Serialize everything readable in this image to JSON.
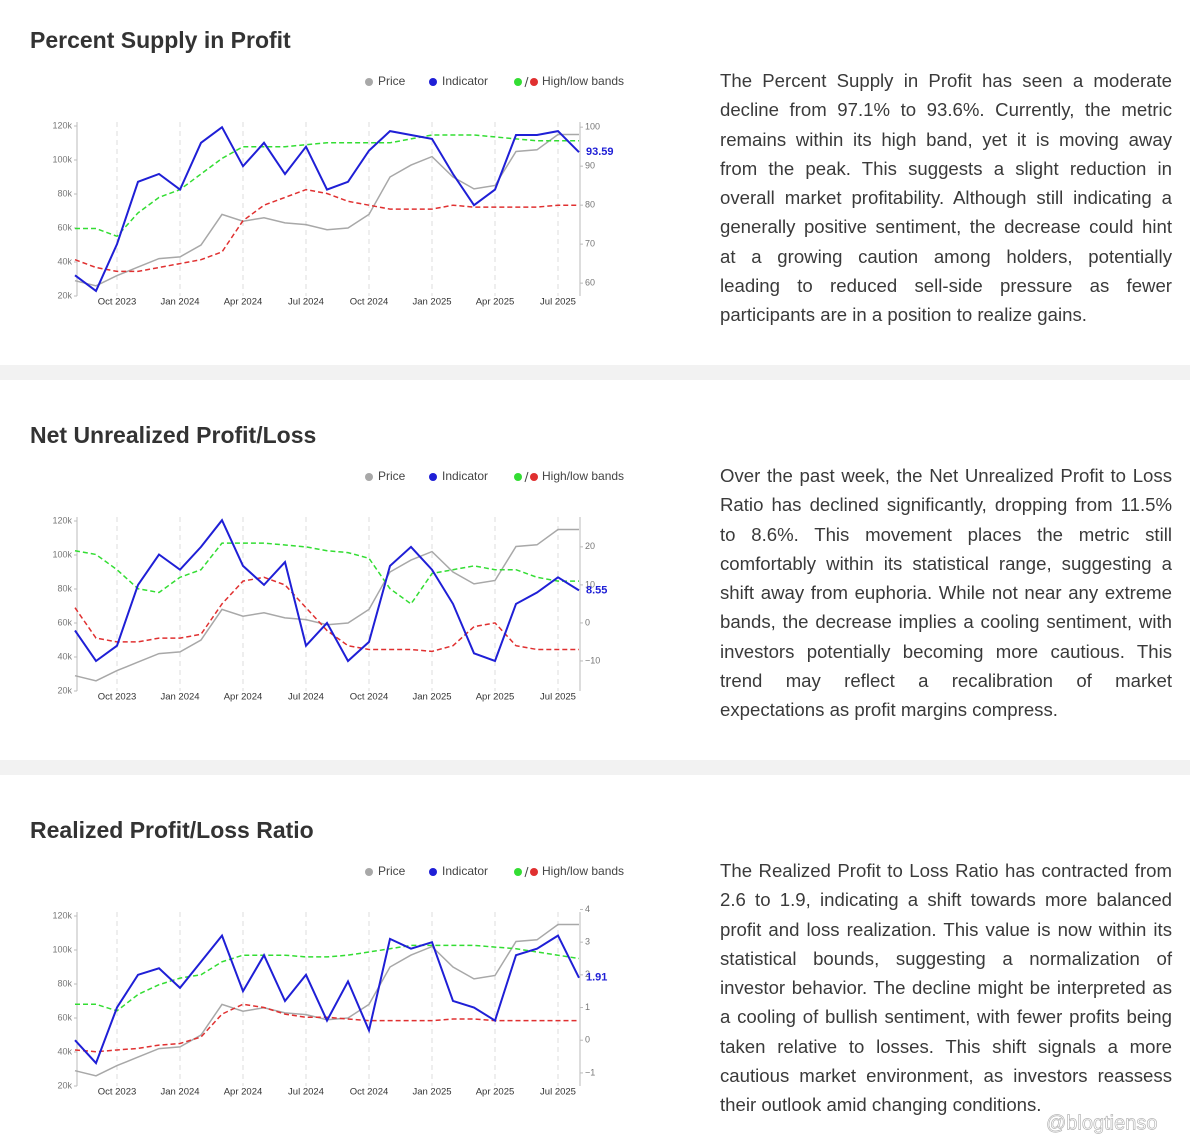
{
  "chart_data": [
    {
      "type": "line",
      "title": "Percent Supply in Profit",
      "text": "The Percent Supply in Profit has seen a moderate decline from 97.1% to 93.6%. Currently, the metric remains within its high band, yet it is moving away from the peak. This suggests a slight reduction in overall market profitability. Although still indicating a generally positive sentiment, the decrease could hint at a growing caution among holders, potentially leading to reduced sell-side pressure as fewer participants are in a position to realize gains.",
      "categories": [
        null,
        null,
        "Oct 2023",
        null,
        null,
        "Jan 2024",
        null,
        null,
        "Apr 2024",
        null,
        null,
        "Jul 2024",
        null,
        null,
        "Oct 2024",
        null,
        null,
        "Jan 2025",
        null,
        null,
        "Apr 2025",
        null,
        null,
        "Jul 2025",
        null
      ],
      "ylim": [
        20000,
        120000
      ],
      "yticks": [
        {
          "value": 20000,
          "label": "20k"
        },
        {
          "value": 40000,
          "label": "40k"
        },
        {
          "value": 60000,
          "label": "60k"
        },
        {
          "value": 80000,
          "label": "80k"
        },
        {
          "value": 100000,
          "label": "100k"
        },
        {
          "value": 120000,
          "label": "120k"
        }
      ],
      "y2lim": [
        56.7,
        100.3
      ],
      "y2ticks": [
        60,
        70,
        80,
        90,
        100
      ],
      "series": [
        {
          "name": "Price",
          "color": "#a8a8a8",
          "values": [
            29000,
            26000,
            32000,
            37000,
            42000,
            43000,
            50000,
            68000,
            64000,
            66000,
            63000,
            62000,
            59000,
            60000,
            68000,
            90000,
            97000,
            102000,
            90000,
            83000,
            85000,
            105000,
            106000,
            115000,
            115000
          ]
        },
        {
          "name": "Indicator",
          "color": "#1f1fd6",
          "axis": "y2",
          "values": [
            62,
            58,
            70,
            86,
            88,
            84,
            96,
            100,
            90,
            96,
            88,
            95,
            84,
            86,
            94,
            99,
            98,
            97,
            88,
            80,
            84,
            98,
            98,
            99,
            93.59
          ]
        }
      ],
      "bands": {
        "name": "High/low bands",
        "high": {
          "color": "#33dd33",
          "axis": "y2",
          "values": [
            74,
            74,
            72,
            78,
            82,
            84,
            88,
            92,
            95,
            95,
            95,
            95.5,
            96,
            96,
            96,
            96,
            97,
            98,
            98,
            98,
            97.5,
            97,
            96.5,
            96.5,
            96.5
          ]
        },
        "low": {
          "color": "#e03030",
          "axis": "y2",
          "values": [
            66,
            64,
            63,
            63,
            64,
            65,
            66,
            68,
            76,
            80,
            82,
            84,
            83,
            81,
            80,
            79,
            79,
            79,
            80,
            79.5,
            79.5,
            79.5,
            79.5,
            80,
            80
          ]
        }
      }
    },
    {
      "type": "line",
      "title": "Net Unrealized Profit/Loss",
      "text": "Over the past week, the Net Unrealized Profit to Loss Ratio has declined significantly, dropping from 11.5% to 8.6%. This movement places the metric still comfortably within its statistical range, suggesting a shift away from euphoria. While not near any extreme bands, the decrease implies a cooling sentiment, with investors potentially becoming more cautious. This trend may reflect a recalibration of market expectations as profit margins compress.",
      "categories": [
        null,
        null,
        "Oct 2023",
        null,
        null,
        "Jan 2024",
        null,
        null,
        "Apr 2024",
        null,
        null,
        "Jul 2024",
        null,
        null,
        "Oct 2024",
        null,
        null,
        "Jan 2025",
        null,
        null,
        "Apr 2025",
        null,
        null,
        "Jul 2025",
        null
      ],
      "ylim": [
        20000,
        120000
      ],
      "yticks": [
        {
          "value": 20000,
          "label": "20k"
        },
        {
          "value": 40000,
          "label": "40k"
        },
        {
          "value": 60000,
          "label": "60k"
        },
        {
          "value": 80000,
          "label": "80k"
        },
        {
          "value": 100000,
          "label": "100k"
        },
        {
          "value": 120000,
          "label": "120k"
        }
      ],
      "y2lim": [
        -17.9,
        26.8
      ],
      "y2ticks": [
        {
          "value": -10,
          "label": "−10"
        },
        0,
        10,
        20
      ],
      "series": [
        {
          "name": "Price",
          "color": "#a8a8a8",
          "values": [
            29000,
            26000,
            32000,
            37000,
            42000,
            43000,
            50000,
            68000,
            64000,
            66000,
            63000,
            62000,
            59000,
            60000,
            68000,
            90000,
            97000,
            102000,
            90000,
            83000,
            85000,
            105000,
            106000,
            115000,
            115000
          ]
        },
        {
          "name": "Indicator",
          "color": "#1f1fd6",
          "axis": "y2",
          "values": [
            -2,
            -10,
            -6,
            10,
            18,
            14,
            20,
            27,
            15,
            10,
            16,
            -6,
            0,
            -10,
            -5,
            15,
            20,
            14,
            5,
            -8,
            -10,
            5,
            8,
            12,
            8.55
          ]
        }
      ],
      "bands": {
        "name": "High/low bands",
        "high": {
          "color": "#33dd33",
          "axis": "y2",
          "values": [
            19,
            18,
            14,
            9,
            8,
            12,
            14,
            21,
            21,
            21,
            20.5,
            20,
            19,
            18.5,
            17,
            9,
            5,
            13,
            14,
            15,
            14,
            14,
            12,
            11,
            11
          ]
        },
        "low": {
          "color": "#e03030",
          "axis": "y2",
          "values": [
            4,
            -4,
            -5,
            -5,
            -4,
            -4,
            -3,
            5,
            11,
            12,
            10,
            4,
            -2,
            -6,
            -7,
            -7,
            -7,
            -7.5,
            -6,
            -1,
            0,
            -6,
            -7,
            -7,
            -7
          ]
        }
      }
    },
    {
      "type": "line",
      "title": "Realized Profit/Loss Ratio",
      "text": "The Realized Profit to Loss Ratio has contracted from 2.6 to 1.9, indicating a shift towards more balanced profit and loss realization. This value is now within its statistical bounds, suggesting a normalization of investor behavior. The decline might be interpreted as a cooling of bullish sentiment, with fewer profits being taken relative to losses. This shift signals a more cautious market environment, as investors reassess their outlook amid changing conditions.",
      "categories": [
        null,
        null,
        "Oct 2023",
        null,
        null,
        "Jan 2024",
        null,
        null,
        "Apr 2024",
        null,
        null,
        "Jul 2024",
        null,
        null,
        "Oct 2024",
        null,
        null,
        "Jan 2025",
        null,
        null,
        "Apr 2025",
        null,
        null,
        "Jul 2025",
        null
      ],
      "ylim": [
        20000,
        120000
      ],
      "yticks": [
        {
          "value": 20000,
          "label": "20k"
        },
        {
          "value": 40000,
          "label": "40k"
        },
        {
          "value": 60000,
          "label": "60k"
        },
        {
          "value": 80000,
          "label": "80k"
        },
        {
          "value": 100000,
          "label": "100k"
        },
        {
          "value": 120000,
          "label": "120k"
        }
      ],
      "y2lim": [
        -1.4,
        3.8
      ],
      "y2ticks": [
        {
          "value": -1,
          "label": "−1"
        },
        0,
        1,
        2,
        3,
        4
      ],
      "series": [
        {
          "name": "Price",
          "color": "#a8a8a8",
          "values": [
            29000,
            26000,
            32000,
            37000,
            42000,
            43000,
            50000,
            68000,
            64000,
            66000,
            63000,
            62000,
            59000,
            60000,
            68000,
            90000,
            97000,
            102000,
            90000,
            83000,
            85000,
            105000,
            106000,
            115000,
            115000
          ]
        },
        {
          "name": "Indicator",
          "color": "#1f1fd6",
          "axis": "y2",
          "values": [
            0,
            -0.7,
            1,
            2,
            2.2,
            1.6,
            2.4,
            3.2,
            1.5,
            2.6,
            1.2,
            2,
            0.6,
            1.8,
            0.3,
            3.1,
            2.8,
            3.0,
            1.2,
            1.0,
            0.6,
            2.6,
            2.8,
            3.2,
            1.91
          ]
        }
      ],
      "bands": {
        "name": "High/low bands",
        "high": {
          "color": "#33dd33",
          "axis": "y2",
          "values": [
            1.1,
            1.1,
            0.9,
            1.4,
            1.7,
            1.9,
            2.0,
            2.4,
            2.6,
            2.6,
            2.6,
            2.55,
            2.55,
            2.6,
            2.7,
            2.8,
            2.9,
            2.9,
            2.9,
            2.9,
            2.85,
            2.8,
            2.7,
            2.6,
            2.5
          ]
        },
        "low": {
          "color": "#e03030",
          "axis": "y2",
          "values": [
            -0.3,
            -0.35,
            -0.3,
            -0.25,
            -0.15,
            -0.1,
            0.1,
            0.8,
            1.1,
            1.0,
            0.8,
            0.7,
            0.7,
            0.65,
            0.6,
            0.6,
            0.6,
            0.6,
            0.65,
            0.65,
            0.6,
            0.6,
            0.6,
            0.6,
            0.6
          ]
        }
      }
    }
  ],
  "watermark": "@blogtienso"
}
